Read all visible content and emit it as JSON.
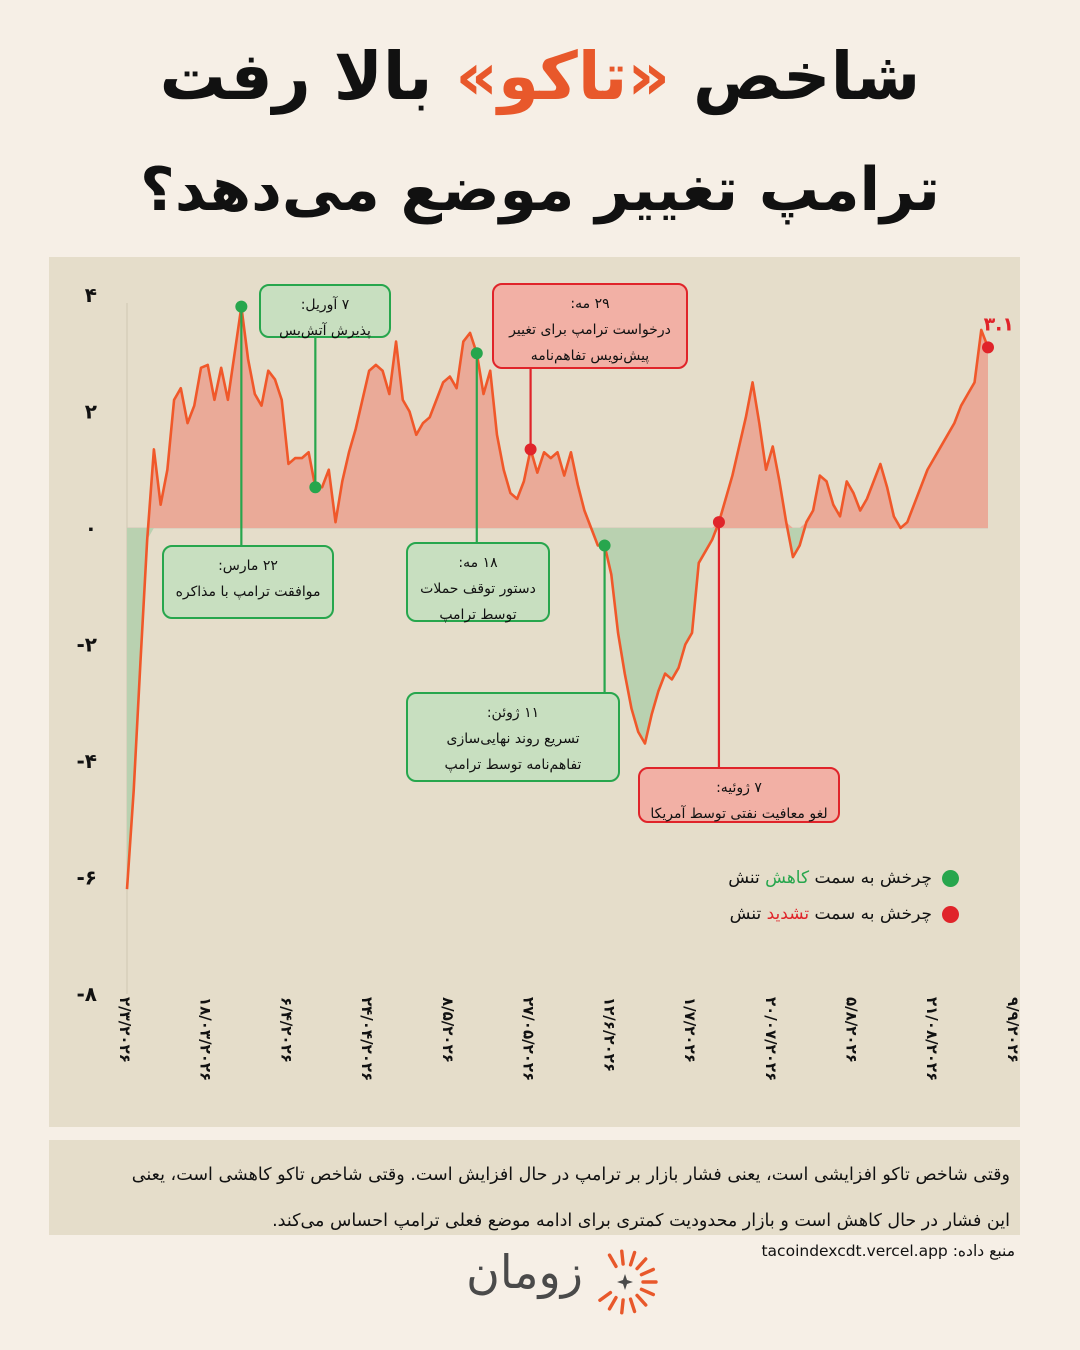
{
  "title": {
    "line1_pre": "شاخص ",
    "line1_accent": "«تاکو»",
    "line1_post": " بالا رفت",
    "line2": "ترامپ تغییر موضع می‌دهد؟"
  },
  "colors": {
    "background": "#f6efe6",
    "panel": "#e5ddca",
    "line": "#f0582a",
    "positive_fill": "#eaaa98",
    "negative_fill": "#b9d1b0",
    "green": "#27a64d",
    "red": "#e0242a",
    "accent": "#e8582b"
  },
  "chart_data": {
    "type": "area",
    "ylim": [
      -8,
      4
    ],
    "y_ticks": [
      4,
      2,
      0,
      -2,
      -4,
      -6,
      -8
    ],
    "y_tick_labels": [
      "۴",
      "۲",
      "۰",
      "-۲",
      "-۴",
      "-۶",
      "-۸"
    ],
    "x_tick_labels": [
      "۲/۳/۲۰۲۶",
      "۱۸/۰۳/۲۰۲۶",
      "۶/۴/۲۰۲۶",
      "۲۴/۰۴/۲۰۲۶",
      "۸/۵/۲۰۲۶",
      "۲۷/۰۵/۲۰۲۶",
      "۱۲/۶/۲۰۲۶",
      "۱/۷/۲۰۲۶",
      "۲۰/۰۷/۲۰۲۶",
      "۵/۸/۲۰۲۶",
      "۲۱/۰۸/۲۰۲۶",
      "۹/۹/۲۰۲۶"
    ],
    "x_tick_index": [
      0,
      12,
      24,
      36,
      48,
      60,
      72,
      84,
      96,
      108,
      120,
      132
    ],
    "values": [
      -6.2,
      -4.5,
      -2.3,
      -0.2,
      1.35,
      0.4,
      1.0,
      2.2,
      2.4,
      1.8,
      2.1,
      2.75,
      2.8,
      2.2,
      2.75,
      2.2,
      3.0,
      3.8,
      2.9,
      2.3,
      2.1,
      2.7,
      2.55,
      2.2,
      1.1,
      1.2,
      1.2,
      1.3,
      0.7,
      0.7,
      1.0,
      0.1,
      0.8,
      1.3,
      1.7,
      2.2,
      2.7,
      2.8,
      2.7,
      2.3,
      3.2,
      2.2,
      2.0,
      1.6,
      1.8,
      1.9,
      2.2,
      2.5,
      2.6,
      2.4,
      3.2,
      3.35,
      3.0,
      2.3,
      2.7,
      1.6,
      1.0,
      0.6,
      0.5,
      0.8,
      1.35,
      0.95,
      1.3,
      1.2,
      1.3,
      0.9,
      1.3,
      0.75,
      0.3,
      0.0,
      -0.3,
      -0.3,
      -0.8,
      -1.8,
      -2.5,
      -3.1,
      -3.5,
      -3.7,
      -3.2,
      -2.8,
      -2.5,
      -2.6,
      -2.4,
      -2.0,
      -1.8,
      -0.6,
      -0.4,
      -0.2,
      0.1,
      0.5,
      0.9,
      1.4,
      1.9,
      2.5,
      1.8,
      1.0,
      1.4,
      0.8,
      0.1,
      -0.5,
      -0.3,
      0.1,
      0.3,
      0.9,
      0.8,
      0.4,
      0.2,
      0.8,
      0.6,
      0.3,
      0.5,
      0.8,
      1.1,
      0.7,
      0.2,
      0.0,
      0.1,
      0.4,
      0.7,
      1.0,
      1.2,
      1.4,
      1.6,
      1.8,
      2.1,
      2.3,
      2.5,
      3.4,
      3.1
    ],
    "last_label": "۳.۱",
    "events": [
      {
        "kind": "green",
        "date": "۲۲ مارس:",
        "lines": [
          "موافقت ترامپ با مذاکره"
        ],
        "index": 17
      },
      {
        "kind": "green",
        "date": "۷ آوریل:",
        "lines": [
          "پذیرش آتش‌بس"
        ],
        "index": 28
      },
      {
        "kind": "green",
        "date": "۱۸ مه:",
        "lines": [
          "دستور توقف حملات",
          "توسط ترامپ"
        ],
        "index": 52
      },
      {
        "kind": "red",
        "date": "۲۹ مه:",
        "lines": [
          "درخواست ترامپ برای تغییر",
          "پیش‌نویس تفاهم‌نامه"
        ],
        "index": 60
      },
      {
        "kind": "green",
        "date": "۱۱ ژوئن:",
        "lines": [
          "تسریع روند نهایی‌سازی",
          "تفاهم‌نامه توسط ترامپ"
        ],
        "index": 71
      },
      {
        "kind": "red",
        "date": "۷ ژوئیه:",
        "lines": [
          "لغو معافیت نفتی توسط آمریکا"
        ],
        "index": 88
      }
    ],
    "legend": [
      {
        "kind": "green",
        "pre": "چرخش به سمت ",
        "highlight": "کاهش",
        "post": " تنش"
      },
      {
        "kind": "red",
        "pre": "چرخش به سمت ",
        "highlight": "تشدید",
        "post": " تنش"
      }
    ]
  },
  "footnote": {
    "line1": "وقتی شاخص تاکو افزایشی است، یعنی فشار بازار بر ترامپ در حال افزایش است. وقتی شاخص تاکو کاهشی است، یعنی",
    "line2": "این فشار در حال کاهش است و بازار محدودیت کمتری برای ادامه موضع فعلی ترامپ احساس می‌کند."
  },
  "source": "منبع داده: tacoindexcdt.vercel.app",
  "brand": {
    "name": "زومان"
  }
}
